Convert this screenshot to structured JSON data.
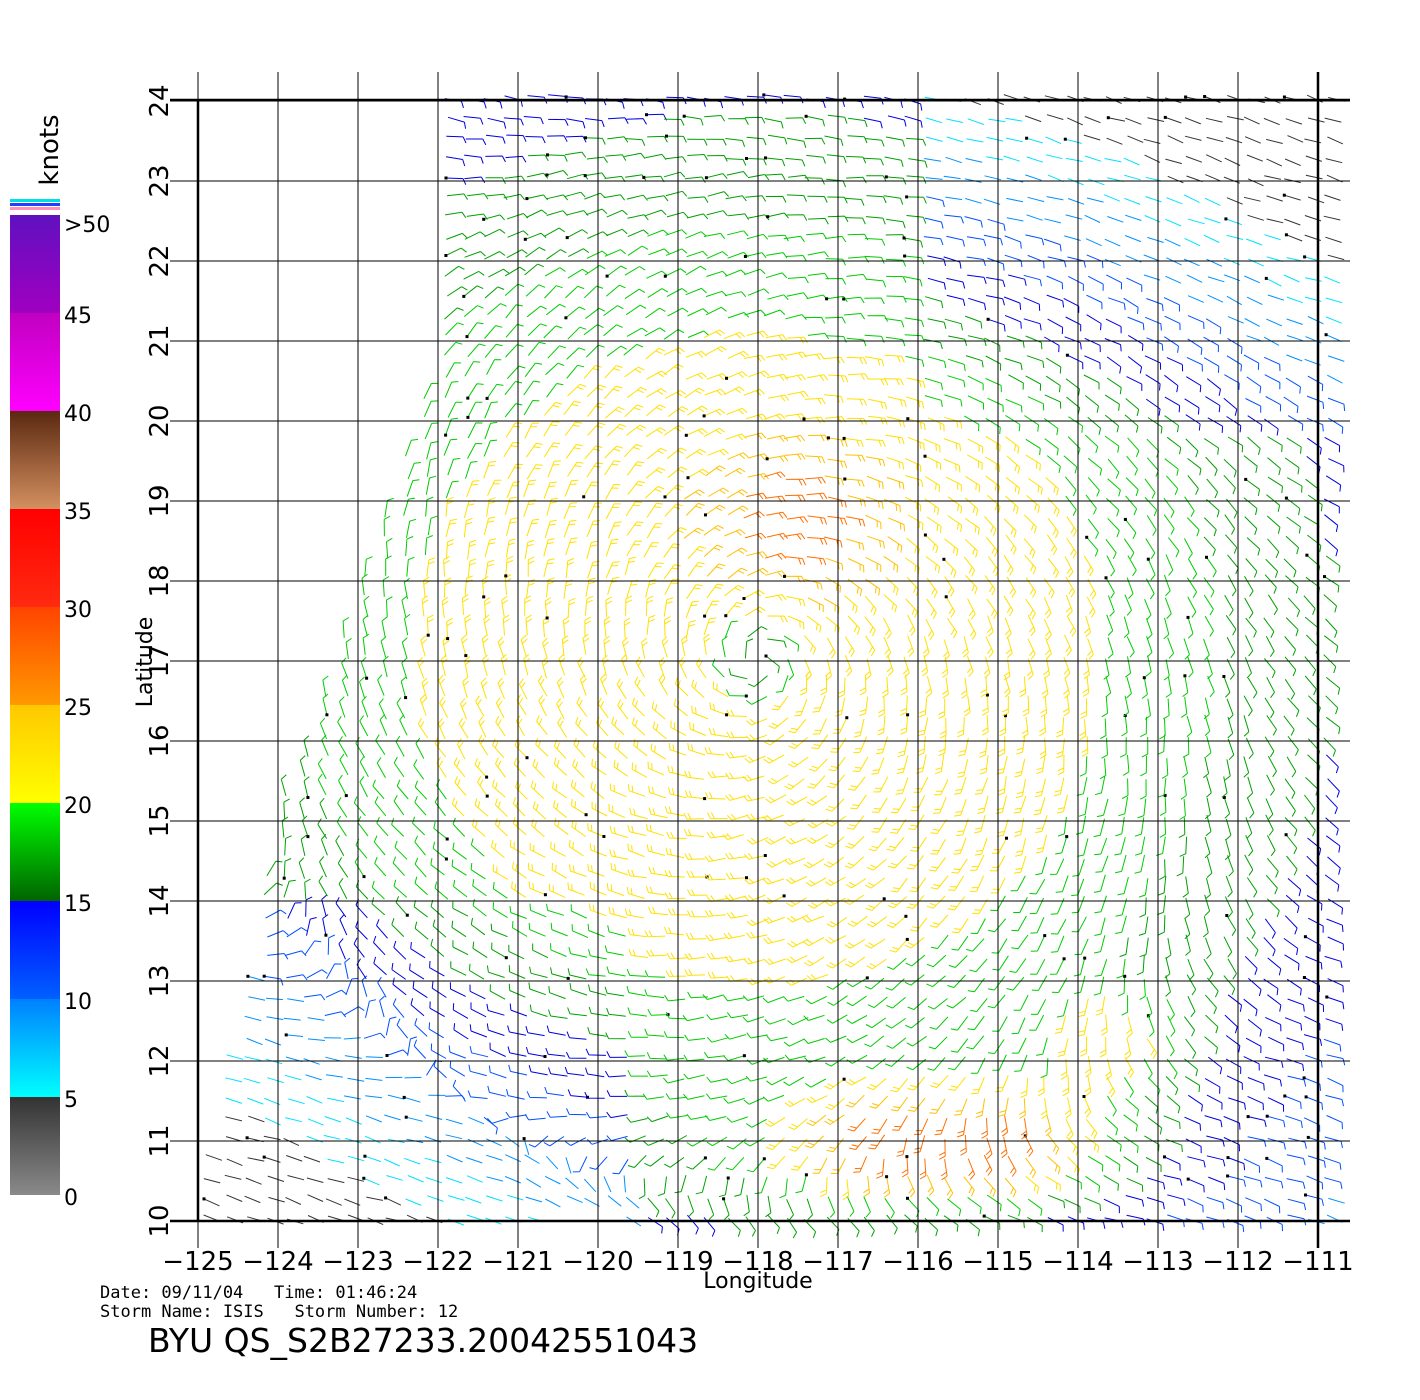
{
  "map": {
    "lon_min": -125,
    "lon_max": -110.6,
    "lat_min": 10,
    "lat_max": 24,
    "lon_ticks": [
      -125,
      -124,
      -123,
      -122,
      -121,
      -120,
      -119,
      -118,
      -117,
      -116,
      -115,
      -114,
      -113,
      -112,
      -111
    ],
    "lat_ticks": [
      10,
      11,
      12,
      13,
      14,
      15,
      16,
      17,
      18,
      19,
      20,
      21,
      22,
      23,
      24
    ],
    "tick_labels_x": [
      "−125",
      "−124",
      "−123",
      "−122",
      "−121",
      "−120",
      "−119",
      "−118",
      "−117",
      "−116",
      "−115",
      "−114",
      "−113",
      "−112",
      "−111"
    ],
    "tick_labels_y": [
      "10",
      "11",
      "12",
      "13",
      "14",
      "15",
      "16",
      "17",
      "18",
      "19",
      "20",
      "21",
      "22",
      "23",
      "24"
    ],
    "xlabel": "Longitude",
    "ylabel": "Latitude",
    "grid": true,
    "storm_center": {
      "lon": -118.0,
      "lat": 17.0
    }
  },
  "legend": {
    "title": "knots",
    "labels": [
      ">50",
      "45",
      "40",
      "35",
      "30",
      "25",
      "20",
      "15",
      "10",
      "5",
      "0"
    ],
    "bands": [
      {
        "from": 0,
        "to": 5,
        "top": "#333333",
        "bottom": "#8a8a8a"
      },
      {
        "from": 5,
        "to": 10,
        "top": "#0080ff",
        "bottom": "#00ffff"
      },
      {
        "from": 10,
        "to": 15,
        "top": "#0000ff",
        "bottom": "#0060ff"
      },
      {
        "from": 15,
        "to": 20,
        "top": "#00ff00",
        "bottom": "#006400"
      },
      {
        "from": 20,
        "to": 25,
        "top": "#ffc800",
        "bottom": "#ffff00"
      },
      {
        "from": 25,
        "to": 30,
        "top": "#ff4400",
        "bottom": "#ff9900"
      },
      {
        "from": 30,
        "to": 35,
        "top": "#ff0000",
        "bottom": "#ff2a10"
      },
      {
        "from": 35,
        "to": 40,
        "top": "#5a2810",
        "bottom": "#d49060"
      },
      {
        "from": 40,
        "to": 45,
        "top": "#c000c0",
        "bottom": "#ff00ff"
      },
      {
        "from": 45,
        "to": 50,
        "top": "#6010c0",
        "bottom": "#a000c0"
      }
    ]
  },
  "info": {
    "date_time": "Date: 09/11/04   Time: 01:46:24",
    "storm": "Storm Name: ISIS   Storm Number: 12",
    "product": "BYU QS_S2B27233.20042551043"
  },
  "chart_data": {
    "type": "wind_barbs",
    "units": "knots",
    "storm_name": "ISIS",
    "storm_number": 12,
    "date": "09/11/04",
    "time": "01:46:24",
    "xlabel": "Longitude",
    "ylabel": "Latitude",
    "xlim": [
      -125,
      -110.6
    ],
    "ylim": [
      10,
      24
    ],
    "circulation_center": {
      "lon": -118.0,
      "lat": 17.0
    },
    "speed_regions": [
      {
        "area": "ring around center (-118,17)",
        "speed_range": [
          20,
          25
        ]
      },
      {
        "area": "north of center near (-117.5,19)",
        "speed_range": [
          25,
          30
        ]
      },
      {
        "area": "south band 10-12N, -117 to -114",
        "speed_range": [
          25,
          35
        ]
      },
      {
        "area": "outer circulation",
        "speed_range": [
          15,
          20
        ]
      },
      {
        "area": "northeast 19-23N, -117 to -111",
        "speed_range": [
          10,
          15
        ]
      },
      {
        "area": "southwest 10-14N, -124 to -120",
        "speed_range": [
          5,
          15
        ]
      },
      {
        "area": "far northeast corner",
        "speed_range": [
          0,
          10
        ]
      }
    ]
  }
}
